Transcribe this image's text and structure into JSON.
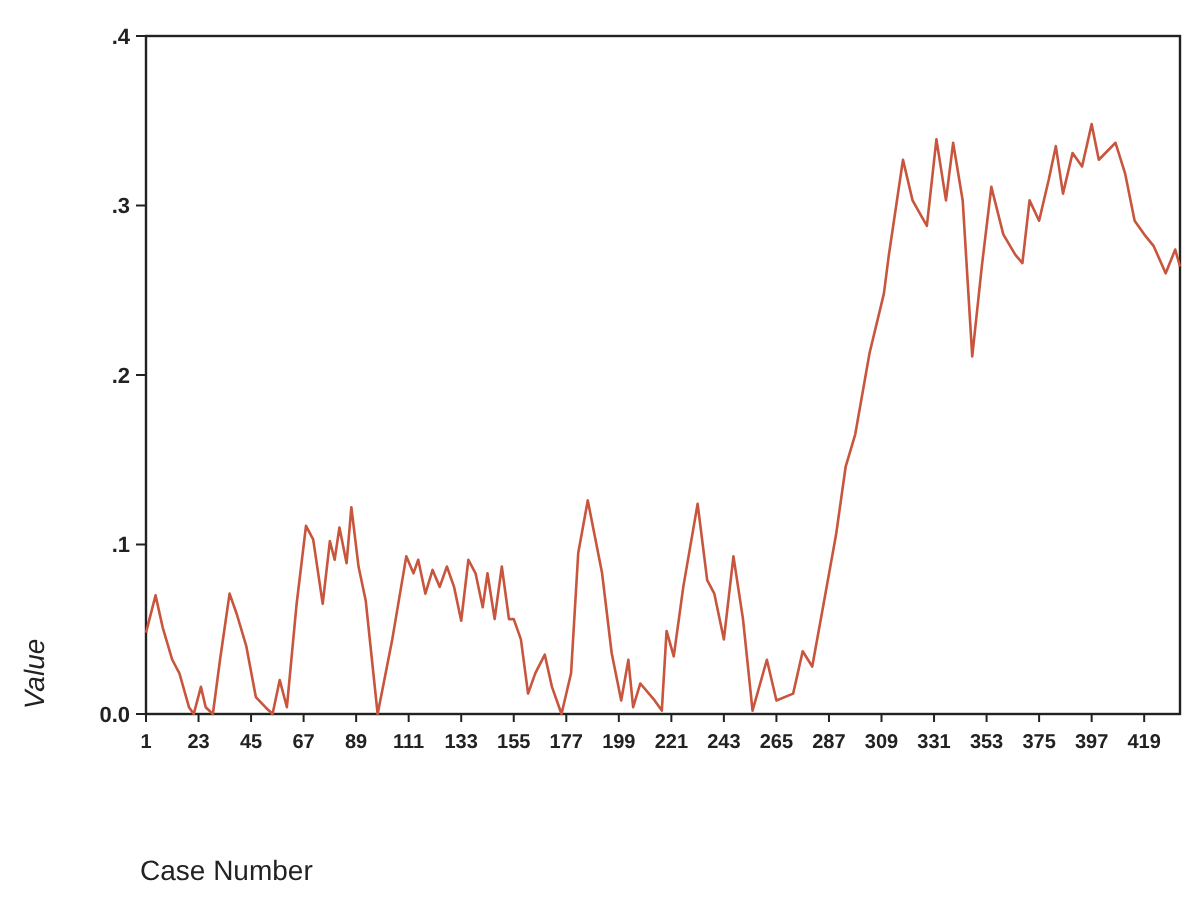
{
  "chart_data": {
    "type": "line",
    "xlabel": "Case Number",
    "ylabel": "Value",
    "xlim": [
      1,
      434
    ],
    "xticks": [
      1,
      23,
      45,
      67,
      89,
      111,
      133,
      155,
      177,
      199,
      221,
      243,
      265,
      287,
      309,
      331,
      353,
      375,
      397,
      419
    ],
    "ylim": [
      0,
      0.4
    ],
    "yticks": [
      {
        "value": 0,
        "label": "0.0"
      },
      {
        "value": 0.1,
        "label": ".1"
      },
      {
        "value": 0.2,
        "label": ".2"
      },
      {
        "value": 0.3,
        "label": ".3"
      },
      {
        "value": 0.4,
        "label": ".4"
      }
    ],
    "grid": false,
    "marker": "none",
    "line_style": "solid",
    "series": [
      {
        "color": "#c8553d",
        "x": [
          1,
          5,
          8,
          12,
          15,
          19,
          21,
          24,
          26,
          29,
          32,
          36,
          39,
          43,
          47,
          51,
          54,
          57,
          60,
          64,
          68,
          71,
          75,
          78,
          80,
          82,
          85,
          87,
          90,
          93,
          98,
          104,
          110,
          113,
          115,
          118,
          121,
          124,
          127,
          130,
          133,
          136,
          139,
          142,
          144,
          147,
          150,
          153,
          155,
          158,
          161,
          164,
          168,
          171,
          175,
          179,
          182,
          186,
          192,
          196,
          200,
          203,
          205,
          208,
          214,
          217,
          219,
          222,
          226,
          232,
          236,
          239,
          243,
          247,
          251,
          255,
          261,
          265,
          272,
          276,
          280,
          285,
          290,
          294,
          298,
          304,
          310,
          312,
          318,
          322,
          328,
          332,
          336,
          339,
          343,
          347,
          351,
          355,
          360,
          365,
          368,
          371,
          375,
          379,
          382,
          385,
          389,
          393,
          397,
          400,
          407,
          411,
          415,
          419,
          423,
          428,
          432,
          434
        ],
        "values": [
          0.048,
          0.07,
          0.051,
          0.032,
          0.024,
          0.004,
          0,
          0.016,
          0.004,
          0,
          0.032,
          0.071,
          0.059,
          0.04,
          0.01,
          0.004,
          0,
          0.02,
          0.004,
          0.064,
          0.111,
          0.103,
          0.065,
          0.102,
          0.091,
          0.11,
          0.089,
          0.122,
          0.087,
          0.067,
          0,
          0.043,
          0.093,
          0.083,
          0.091,
          0.071,
          0.085,
          0.075,
          0.087,
          0.075,
          0.055,
          0.091,
          0.083,
          0.063,
          0.083,
          0.056,
          0.087,
          0.056,
          0.056,
          0.044,
          0.012,
          0.024,
          0.035,
          0.016,
          0,
          0.024,
          0.095,
          0.126,
          0.083,
          0.036,
          0.008,
          0.032,
          0.004,
          0.018,
          0.008,
          0.002,
          0.049,
          0.034,
          0.075,
          0.124,
          0.079,
          0.071,
          0.044,
          0.093,
          0.056,
          0.002,
          0.032,
          0.008,
          0.012,
          0.037,
          0.028,
          0.067,
          0.106,
          0.146,
          0.165,
          0.213,
          0.248,
          0.27,
          0.327,
          0.303,
          0.288,
          0.339,
          0.303,
          0.337,
          0.303,
          0.211,
          0.264,
          0.311,
          0.283,
          0.271,
          0.266,
          0.303,
          0.291,
          0.315,
          0.335,
          0.307,
          0.331,
          0.323,
          0.348,
          0.327,
          0.337,
          0.319,
          0.291,
          0.283,
          0.276,
          0.26,
          0.274,
          0.264
        ]
      }
    ]
  }
}
